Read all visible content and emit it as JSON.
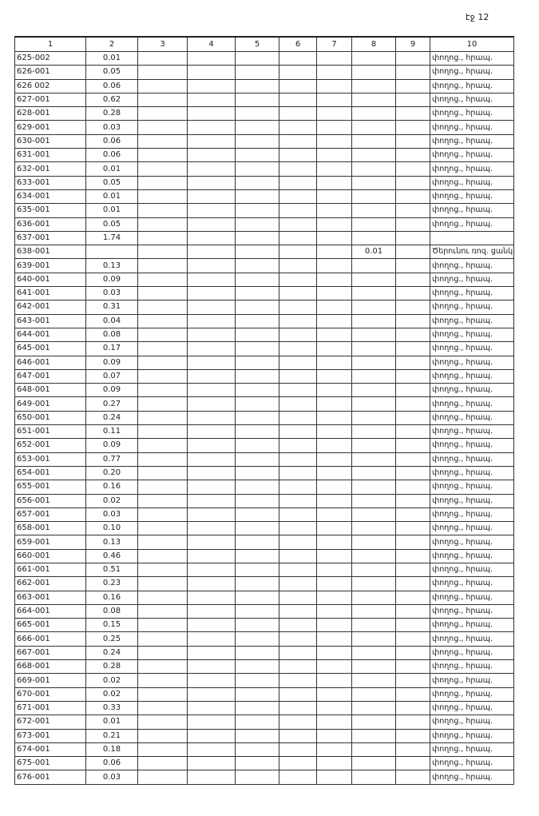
{
  "header": {
    "page": "էջ 12"
  },
  "table": {
    "columns": [
      "1",
      "2",
      "3",
      "4",
      "5",
      "6",
      "7",
      "8",
      "9",
      "10"
    ],
    "rows": [
      {
        "code": "625-002",
        "c2": "0.01",
        "c10": "փողոց., հրապ."
      },
      {
        "code": "626-001",
        "c2": "0.05",
        "c10": "փողոց., հրապ."
      },
      {
        "code": "626 002",
        "c2": "0.06",
        "c10": "փողոց., հրապ."
      },
      {
        "code": "627-001",
        "c2": "0.62",
        "c10": "փողոց., հրապ."
      },
      {
        "code": "628-001",
        "c2": "0.28",
        "c10": "փողոց., հրապ."
      },
      {
        "code": "629-001",
        "c2": "0.03",
        "c10": "փողոց., հրապ."
      },
      {
        "code": "630-001",
        "c2": "0.06",
        "c10": "փողոց., հրապ."
      },
      {
        "code": "631-001",
        "c2": "0.06",
        "c10": "փողոց., հրապ."
      },
      {
        "code": "632-001",
        "c2": "0.01",
        "c10": "փողոց., հրապ."
      },
      {
        "code": "633-001",
        "c2": "0.05",
        "c10": "փողոց., հրապ."
      },
      {
        "code": "634-001",
        "c2": "0.01",
        "c10": "փողոց., հրապ."
      },
      {
        "code": "635-001",
        "c2": "0.01",
        "c10": "փողոց., հրապ."
      },
      {
        "code": "636-001",
        "c2": "0.05",
        "c10": "փողոց., հրապ."
      },
      {
        "code": "637-001",
        "c2": "1.74"
      },
      {
        "code": "638-001",
        "c8": "0.01",
        "c10": "Ծերունու ռոզ. ցանկ"
      },
      {
        "code": "639-001",
        "c2": "0.13",
        "c10": "փողոց., հրապ."
      },
      {
        "code": "640-001",
        "c2": "0.09",
        "c10": "փողոց., հրապ."
      },
      {
        "code": "641-001",
        "c2": "0.03",
        "c10": "փողոց., հրապ."
      },
      {
        "code": "642-001",
        "c2": "0.31",
        "c10": "փողոց., հրապ."
      },
      {
        "code": "643-001",
        "c2": "0.04",
        "c10": "փողոց., հրապ."
      },
      {
        "code": "644-001",
        "c2": "0.08",
        "c10": "փողոց., հրապ."
      },
      {
        "code": "645-001",
        "c2": "0.17",
        "c10": "փողոց., հրապ."
      },
      {
        "code": "646-001",
        "c2": "0.09",
        "c10": "փողոց., հրապ."
      },
      {
        "code": "647-001",
        "c2": "0.07",
        "c10": "փողոց., հրապ."
      },
      {
        "code": "648-001",
        "c2": "0.09",
        "c10": "փողոց., հրապ."
      },
      {
        "code": "649-001",
        "c2": "0.27",
        "c10": "փողոց., հրապ."
      },
      {
        "code": "650-001",
        "c2": "0.24",
        "c10": "փողոց., հրապ."
      },
      {
        "code": "651-001",
        "c2": "0.11",
        "c10": "փողոց., հրապ."
      },
      {
        "code": "652-001",
        "c2": "0.09",
        "c10": "փողոց., հրապ."
      },
      {
        "code": "653-001",
        "c2": "0.77",
        "c10": "փողոց., հրապ."
      },
      {
        "code": "654-001",
        "c2": "0.20",
        "c10": "փողոց., հրապ."
      },
      {
        "code": "655-001",
        "c2": "0.16",
        "c10": "փողոց., հրապ."
      },
      {
        "code": "656-001",
        "c2": "0.02",
        "c10": "փողոց., հրապ."
      },
      {
        "code": "657-001",
        "c2": "0.03",
        "c10": "փողոց., հրապ."
      },
      {
        "code": "658-001",
        "c2": "0.10",
        "c10": "փողոց., հրապ."
      },
      {
        "code": "659-001",
        "c2": "0.13",
        "c10": "փողոց., հրապ."
      },
      {
        "code": "660-001",
        "c2": "0.46",
        "c10": "փողոց., հրապ."
      },
      {
        "code": "661-001",
        "c2": "0.51",
        "c10": "փողոց., հրապ."
      },
      {
        "code": "662-001",
        "c2": "0.23",
        "c10": "փողոց., հրապ."
      },
      {
        "code": "663-001",
        "c2": "0.16",
        "c10": "փողոց., հրապ."
      },
      {
        "code": "664-001",
        "c2": "0.08",
        "c10": "փողոց., հրապ."
      },
      {
        "code": "665-001",
        "c2": "0.15",
        "c10": "փողոց., հրապ."
      },
      {
        "code": "666-001",
        "c2": "0.25",
        "c10": "փողոց., հրապ."
      },
      {
        "code": "667-001",
        "c2": "0.24",
        "c10": "փողոց., հրապ."
      },
      {
        "code": "668-001",
        "c2": "0.28",
        "c10": "փողոց., հրապ."
      },
      {
        "code": "669-001",
        "c2": "0.02",
        "c10": "փողոց., հրապ."
      },
      {
        "code": "670-001",
        "c2": "0.02",
        "c10": "փողոց., հրապ."
      },
      {
        "code": "671-001",
        "c2": "0.33",
        "c10": "փողոց., հրապ."
      },
      {
        "code": "672-001",
        "c2": "0.01",
        "c10": "փողոց., հրապ."
      },
      {
        "code": "673-001",
        "c2": "0.21",
        "c10": "փողոց., հրապ."
      },
      {
        "code": "674-001",
        "c2": "0.18",
        "c10": "փողոց., հրապ."
      },
      {
        "code": "675-001",
        "c2": "0.06",
        "c10": "փողոց., հրապ."
      },
      {
        "code": "676-001",
        "c2": "0.03",
        "c10": "փողոց., հրապ."
      }
    ]
  }
}
